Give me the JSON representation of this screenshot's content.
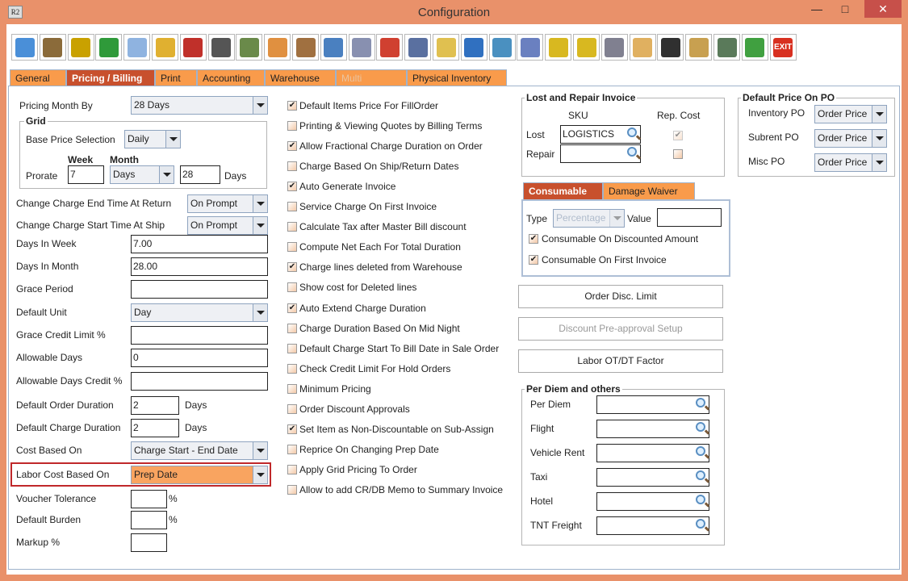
{
  "window": {
    "title": "Configuration",
    "app_icon": "R2",
    "minimize": "—",
    "maximize": "□",
    "close": "✕"
  },
  "toolbar": [
    {
      "icon": "save-icon",
      "c": "#4a8fd8"
    },
    {
      "icon": "shipping-alert-icon",
      "c": "#8b6b3a"
    },
    {
      "icon": "coins-alert-icon",
      "c": "#c9a100"
    },
    {
      "icon": "invoice-alert-icon",
      "c": "#2f9a3a"
    },
    {
      "icon": "edit-document-icon",
      "c": "#8fb3e0"
    },
    {
      "icon": "form-alert-icon",
      "c": "#e0b030"
    },
    {
      "icon": "payment-alert-icon",
      "c": "#c0302a"
    },
    {
      "icon": "grid-alert-icon",
      "c": "#555"
    },
    {
      "icon": "ledger-alert-icon",
      "c": "#6a8a4a"
    },
    {
      "icon": "lock-arrow-icon",
      "c": "#e09040"
    },
    {
      "icon": "calendar-icon",
      "c": "#a07040"
    },
    {
      "icon": "ruler-icon",
      "c": "#4a80c0"
    },
    {
      "icon": "gears-icon",
      "c": "#8890b0"
    },
    {
      "icon": "cubes-icon",
      "c": "#d04030"
    },
    {
      "icon": "dollar-gear-icon",
      "c": "#5a70a0"
    },
    {
      "icon": "folder-clock-icon",
      "c": "#e0c050"
    },
    {
      "icon": "card-edit-icon",
      "c": "#3070c0"
    },
    {
      "icon": "document-cubes-icon",
      "c": "#4a90c0"
    },
    {
      "icon": "document-return-icon",
      "c": "#6a80c0"
    },
    {
      "icon": "shield-binoculars-icon",
      "c": "#d8b820"
    },
    {
      "icon": "shield-user-icon",
      "c": "#d8b820"
    },
    {
      "icon": "scanner-gear-icon",
      "c": "#808090"
    },
    {
      "icon": "folder-lock-icon",
      "c": "#e0b060"
    },
    {
      "icon": "chess-cubes-icon",
      "c": "#303030"
    },
    {
      "icon": "folder-gear-icon",
      "c": "#c8a050"
    },
    {
      "icon": "calculator-gear-icon",
      "c": "#5a7a5a"
    },
    {
      "icon": "transfer-icon",
      "c": "#40a040"
    },
    {
      "icon": "exit-icon",
      "c": "#d83020",
      "label": "EXIT"
    }
  ],
  "tabs": [
    {
      "label": "General"
    },
    {
      "label": "Pricing / Billing",
      "active": true
    },
    {
      "label": "Print"
    },
    {
      "label": "Accounting"
    },
    {
      "label": "Warehouse"
    },
    {
      "label": "Multi Currency",
      "disabled": true
    },
    {
      "label": "Physical Inventory"
    }
  ],
  "left": {
    "pricing_month_by": {
      "label": "Pricing Month By",
      "value": "28 Days"
    },
    "grid": {
      "title": "Grid",
      "base_price_label": "Base Price Selection",
      "base_price_value": "Daily",
      "week_label": "Week",
      "month_label": "Month",
      "prorate_label": "Prorate",
      "week_value": "7",
      "month_unit": "Days",
      "month_value": "28",
      "days_label": "Days"
    },
    "end_time": {
      "label": "Change Charge End Time At Return",
      "value": "On Prompt"
    },
    "start_time": {
      "label": "Change Charge Start Time At Ship",
      "value": "On Prompt"
    },
    "days_in_week": {
      "label": "Days In Week",
      "value": "7.00"
    },
    "days_in_month": {
      "label": "Days In Month",
      "value": "28.00"
    },
    "grace_period": {
      "label": "Grace Period",
      "value": ""
    },
    "default_unit": {
      "label": "Default Unit",
      "value": "Day"
    },
    "grace_credit": {
      "label": "Grace Credit Limit %",
      "value": ""
    },
    "allowable_days": {
      "label": "Allowable Days",
      "value": "0"
    },
    "allowable_days_credit": {
      "label": "Allowable Days Credit %",
      "value": ""
    },
    "order_duration": {
      "label": "Default Order Duration",
      "value": "2",
      "unit": "Days"
    },
    "charge_duration": {
      "label": "Default Charge Duration",
      "value": "2",
      "unit": "Days"
    },
    "cost_based_on": {
      "label": "Cost Based On",
      "value": "Charge Start - End Date"
    },
    "labor_cost": {
      "label": "Labor Cost Based On",
      "value": "Prep Date"
    },
    "voucher_tolerance": {
      "label": "Voucher Tolerance",
      "value": "",
      "unit": "%"
    },
    "default_burden": {
      "label": "Default Burden",
      "value": "",
      "unit": "%"
    },
    "markup": {
      "label": "Markup %",
      "value": ""
    }
  },
  "options": [
    {
      "label": "Default Items Price For FillOrder",
      "checked": true
    },
    {
      "label": "Printing & Viewing Quotes by Billing Terms",
      "checked": false
    },
    {
      "label": "Allow Fractional Charge Duration on Order",
      "checked": true
    },
    {
      "label": "Charge Based On Ship/Return Dates",
      "checked": false
    },
    {
      "label": "Auto Generate Invoice",
      "checked": true
    },
    {
      "label": "Service Charge On First Invoice",
      "checked": false
    },
    {
      "label": "Calculate Tax after Master Bill discount",
      "checked": false
    },
    {
      "label": "Compute Net Each For Total Duration",
      "checked": false
    },
    {
      "label": "Charge lines deleted from Warehouse",
      "checked": true
    },
    {
      "label": "Show cost for Deleted lines",
      "checked": false
    },
    {
      "label": "Auto Extend Charge Duration",
      "checked": true
    },
    {
      "label": "Charge Duration Based On Mid Night",
      "checked": false
    },
    {
      "label": "Default Charge Start To Bill Date in Sale Order",
      "checked": false
    },
    {
      "label": "Check Credit Limit For Hold Orders",
      "checked": false
    },
    {
      "label": "Minimum Pricing",
      "checked": false
    },
    {
      "label": "Order Discount Approvals",
      "checked": false
    },
    {
      "label": "Set Item as Non-Discountable on Sub-Assign",
      "checked": true
    },
    {
      "label": "Reprice On Changing Prep Date",
      "checked": false
    },
    {
      "label": "Apply Grid Pricing To Order",
      "checked": false
    },
    {
      "label": "Allow to add CR/DB Memo to Summary Invoice",
      "checked": false
    }
  ],
  "lost_repair": {
    "title": "Lost and Repair Invoice",
    "sku_header": "SKU",
    "rep_cost_header": "Rep. Cost",
    "lost_label": "Lost",
    "lost_value": "LOGISTICS",
    "repair_label": "Repair",
    "repair_value": ""
  },
  "default_price_po": {
    "title": "Default Price On PO",
    "rows": [
      {
        "label": "Inventory PO",
        "value": "Order Price"
      },
      {
        "label": "Subrent PO",
        "value": "Order Price"
      },
      {
        "label": "Misc PO",
        "value": "Order Price"
      }
    ]
  },
  "sub_tabs": [
    {
      "label": "Consumable",
      "active": true
    },
    {
      "label": "Damage Waiver"
    }
  ],
  "consumable": {
    "type_label": "Type",
    "type_value": "Percentage",
    "value_label": "Value",
    "value": "",
    "discounted_label": "Consumable On Discounted Amount",
    "first_invoice_label": "Consumable On First Invoice"
  },
  "buttons": {
    "order_disc_limit": "Order Disc. Limit",
    "discount_preapproval": "Discount Pre-approval Setup",
    "labor_factor": "Labor OT/DT Factor"
  },
  "per_diem": {
    "title": "Per Diem and others",
    "rows": [
      {
        "label": "Per Diem",
        "value": ""
      },
      {
        "label": "Flight",
        "value": ""
      },
      {
        "label": "Vehicle Rent",
        "value": ""
      },
      {
        "label": "Taxi",
        "value": ""
      },
      {
        "label": "Hotel",
        "value": ""
      },
      {
        "label": "TNT Freight",
        "value": ""
      }
    ]
  }
}
